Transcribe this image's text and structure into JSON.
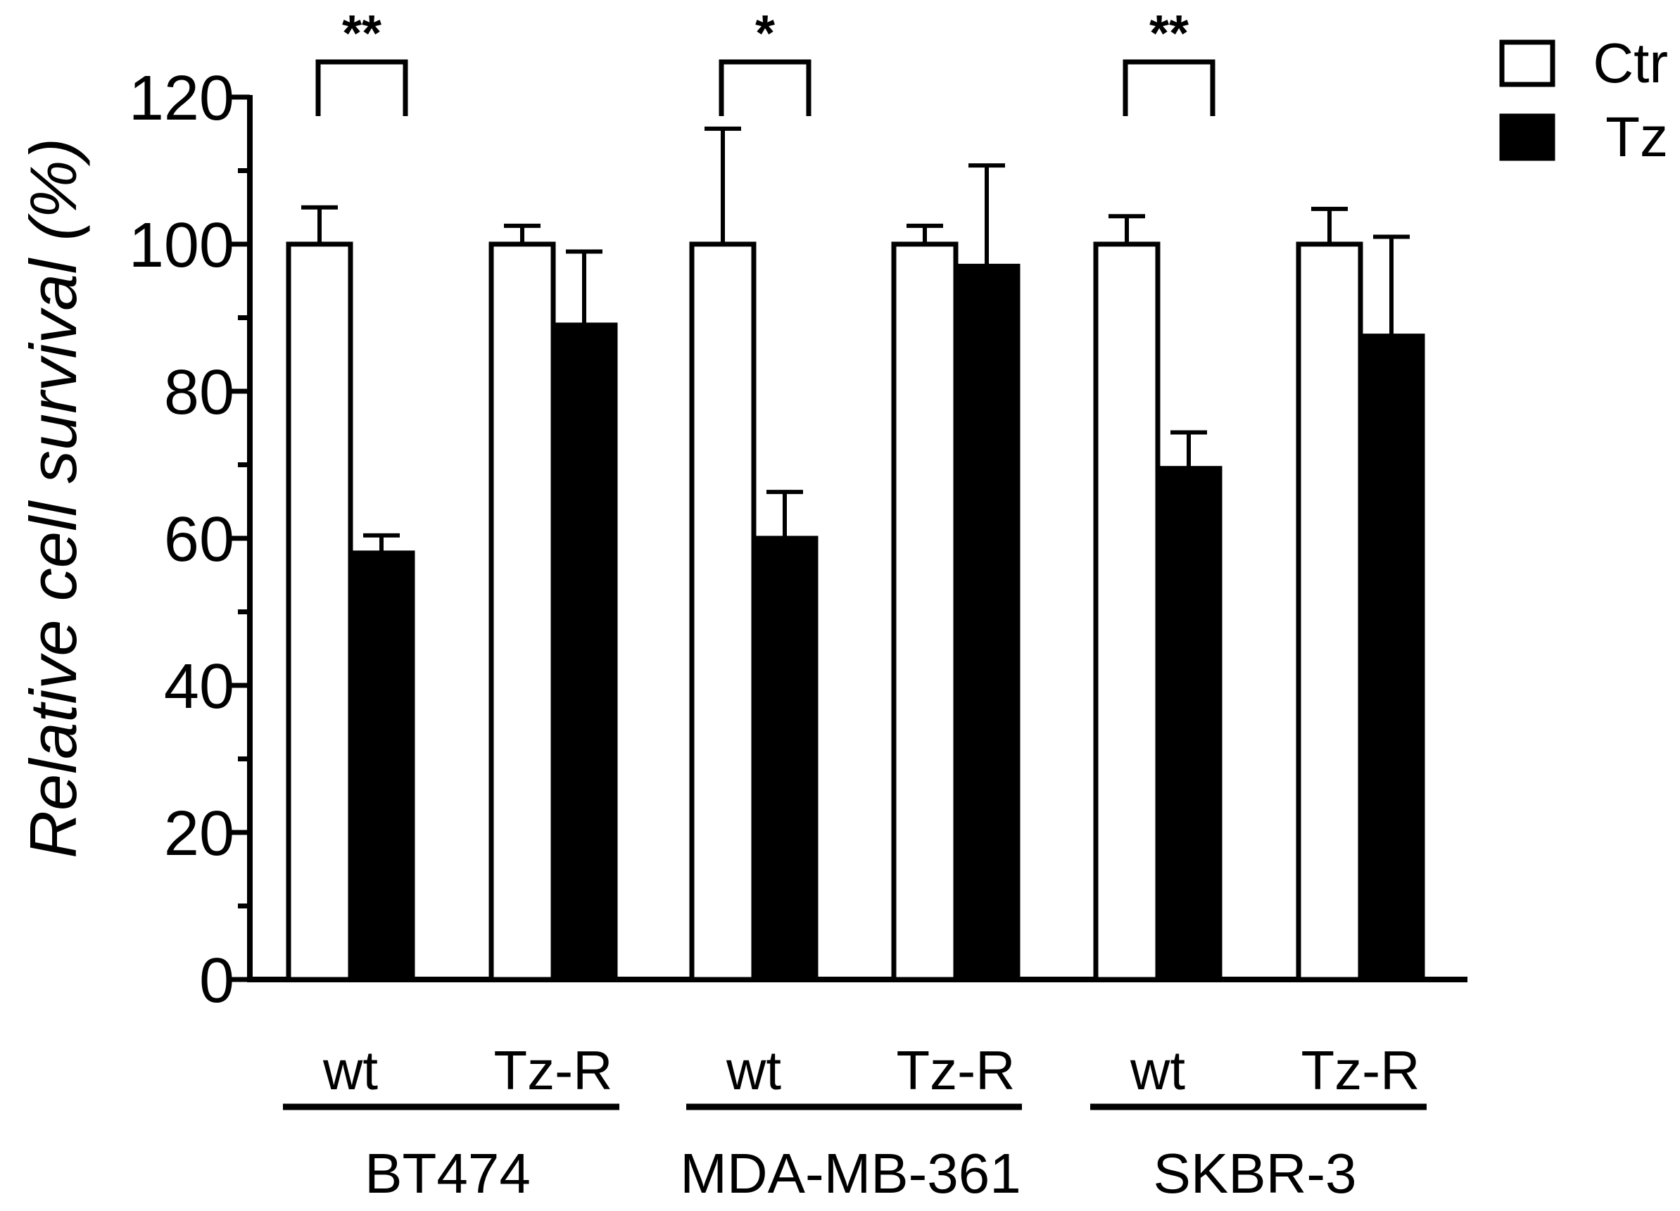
{
  "chart_data": {
    "type": "bar",
    "ylabel": "Relative cell survival (%)",
    "ylim": [
      0,
      120
    ],
    "y_major_ticks": [
      0,
      20,
      40,
      60,
      80,
      100,
      120
    ],
    "y_minor_step": 10,
    "grid": false,
    "legend_position": "top-right",
    "series": [
      {
        "name": "Ctr",
        "fill": "#ffffff",
        "values": [
          100,
          100,
          100,
          100,
          100,
          100
        ],
        "errors": [
          5,
          2.5,
          15.7,
          2.5,
          3.8,
          4.8
        ]
      },
      {
        "name": "Tz",
        "fill": "#000000",
        "values": [
          58,
          89,
          60,
          97,
          69.5,
          87.5
        ],
        "errors": [
          2.4,
          10,
          6.3,
          13.7,
          4.9,
          13.5
        ]
      }
    ],
    "categories": [
      "wt",
      "Tz-R",
      "wt",
      "Tz-R",
      "wt",
      "Tz-R"
    ],
    "cell_lines": [
      {
        "name": "BT474",
        "categories": [
          0,
          1
        ]
      },
      {
        "name": "MDA-MB-361",
        "categories": [
          2,
          3
        ]
      },
      {
        "name": "SKBR-3",
        "categories": [
          4,
          5
        ]
      }
    ],
    "significance": [
      {
        "category": 0,
        "label": "**"
      },
      {
        "category": 2,
        "label": "*"
      },
      {
        "category": 4,
        "label": "**"
      }
    ]
  }
}
